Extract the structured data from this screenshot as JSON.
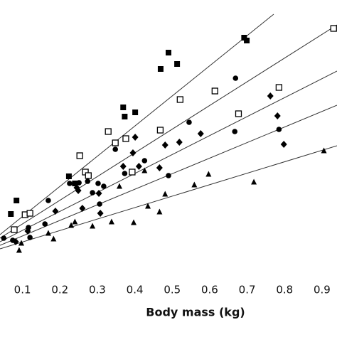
{
  "chart_data": {
    "type": "scatter",
    "xlabel": "Body mass (kg)",
    "xlim": [
      0.04,
      0.94
    ],
    "xticks": [
      {
        "value": 0.1,
        "label": "0.1"
      },
      {
        "value": 0.2,
        "label": "0.2"
      },
      {
        "value": 0.3,
        "label": "0.3"
      },
      {
        "value": 0.4,
        "label": "0.4"
      },
      {
        "value": 0.5,
        "label": "0.5"
      },
      {
        "value": 0.6,
        "label": "0.6"
      },
      {
        "value": 0.7,
        "label": "0.7"
      },
      {
        "value": 0.8,
        "label": "0.8"
      },
      {
        "value": 0.9,
        "label": "0.9"
      }
    ],
    "ylim": [
      0,
      385
    ],
    "series": [
      {
        "marker": "filled-square",
        "color": "#000000",
        "x": [
          0.069,
          0.084,
          0.224,
          0.24,
          0.369,
          0.373,
          0.401,
          0.469,
          0.49,
          0.513,
          0.692,
          0.699
        ],
        "values": [
          84,
          103,
          137,
          127,
          234,
          221,
          227,
          288,
          311,
          295,
          332,
          328
        ]
      },
      {
        "marker": "open-square",
        "color": "#000000",
        "x": [
          0.078,
          0.107,
          0.12,
          0.253,
          0.268,
          0.276,
          0.329,
          0.348,
          0.376,
          0.393,
          0.468,
          0.521,
          0.614,
          0.677,
          0.785,
          0.931
        ],
        "values": [
          62,
          83,
          85,
          166,
          143,
          138,
          200,
          184,
          190,
          143,
          202,
          245,
          257,
          225,
          262,
          345
        ]
      },
      {
        "marker": "circle",
        "color": "#000000",
        "x": [
          0.05,
          0.074,
          0.116,
          0.12,
          0.169,
          0.16,
          0.226,
          0.251,
          0.274,
          0.287,
          0.302,
          0.306,
          0.317,
          0.348,
          0.373,
          0.426,
          0.49,
          0.545,
          0.669,
          0.667,
          0.785
        ],
        "values": [
          50,
          47,
          65,
          51,
          103,
          70,
          127,
          128,
          130,
          114,
          127,
          98,
          123,
          175,
          141,
          159,
          138,
          213,
          275,
          200,
          203
        ]
      },
      {
        "marker": "diamond",
        "color": "#000000",
        "x": [
          0.082,
          0.114,
          0.188,
          0.245,
          0.249,
          0.26,
          0.304,
          0.308,
          0.369,
          0.395,
          0.401,
          0.411,
          0.466,
          0.481,
          0.519,
          0.576,
          0.762,
          0.781,
          0.798
        ],
        "values": [
          45,
          60,
          88,
          121,
          117,
          92,
          113,
          85,
          151,
          170,
          192,
          151,
          149,
          181,
          185,
          197,
          250,
          222,
          182
        ]
      },
      {
        "marker": "triangle",
        "color": "#000000",
        "x": [
          0.091,
          0.097,
          0.169,
          0.183,
          0.23,
          0.24,
          0.287,
          0.338,
          0.359,
          0.397,
          0.426,
          0.435,
          0.466,
          0.481,
          0.559,
          0.597,
          0.718,
          0.905
        ],
        "values": [
          33,
          43,
          57,
          49,
          68,
          73,
          67,
          73,
          123,
          72,
          145,
          95,
          87,
          112,
          125,
          140,
          129,
          173
        ]
      },
      {
        "marker": "line",
        "color": "#333333",
        "x": [
          0.04,
          0.771
        ],
        "values": [
          55,
          365
        ]
      },
      {
        "marker": "line",
        "color": "#333333",
        "x": [
          0.04,
          0.94
        ],
        "values": [
          50,
          350
        ]
      },
      {
        "marker": "line",
        "color": "#333333",
        "x": [
          0.04,
          0.94
        ],
        "values": [
          45,
          285
        ]
      },
      {
        "marker": "line",
        "color": "#333333",
        "x": [
          0.04,
          0.94
        ],
        "values": [
          40,
          237
        ]
      },
      {
        "marker": "line",
        "color": "#333333",
        "x": [
          0.04,
          0.94
        ],
        "values": [
          35,
          180
        ]
      }
    ]
  }
}
